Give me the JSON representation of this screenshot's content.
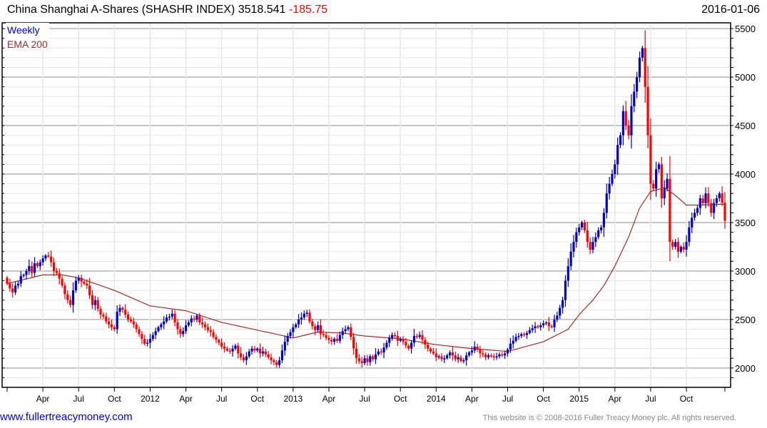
{
  "header": {
    "name": "China Shanghai A-Shares (SHASHR INDEX)",
    "last": "3518.541",
    "change": "-185.75",
    "date": "2016-01-06"
  },
  "legend": {
    "series": "Weekly",
    "ema": "EMA 200"
  },
  "footer": {
    "site": "www.fullertreacymoney.com",
    "copyright": "This website is © 2008-2016 Fuller Treacy Money plc. All rights reserved."
  },
  "colors": {
    "up": "#0000cc",
    "down": "#ff0000",
    "ema": "#a52a2a",
    "grid_minor": "#e6e6e6",
    "grid_major": "#b4b4b4"
  },
  "chart_data": {
    "type": "candlestick",
    "title": "China Shanghai A-Shares (SHASHR INDEX)",
    "frequency": "Weekly",
    "x_start": "2011-01",
    "x_end": "2016-01",
    "ylim": [
      1800,
      5560
    ],
    "yticks": [
      2000,
      2500,
      3000,
      3500,
      4000,
      4500,
      5000,
      5500
    ],
    "xticks": [
      {
        "week": 13,
        "label": "Apr"
      },
      {
        "week": 26,
        "label": "Jul"
      },
      {
        "week": 39,
        "label": "Oct"
      },
      {
        "week": 52,
        "label": "2012"
      },
      {
        "week": 65,
        "label": "Apr"
      },
      {
        "week": 78,
        "label": "Jul"
      },
      {
        "week": 91,
        "label": "Oct"
      },
      {
        "week": 104,
        "label": "2013"
      },
      {
        "week": 117,
        "label": "Apr"
      },
      {
        "week": 130,
        "label": "Jul"
      },
      {
        "week": 143,
        "label": "Oct"
      },
      {
        "week": 156,
        "label": "2014"
      },
      {
        "week": 169,
        "label": "Apr"
      },
      {
        "week": 182,
        "label": "Jul"
      },
      {
        "week": 195,
        "label": "Oct"
      },
      {
        "week": 208,
        "label": "2015"
      },
      {
        "week": 221,
        "label": "Apr"
      },
      {
        "week": 234,
        "label": "Jul"
      },
      {
        "week": 247,
        "label": "Oct"
      }
    ],
    "first_open": 2930,
    "weekly_close": [
      2870,
      2820,
      2780,
      2850,
      2870,
      2950,
      2960,
      3000,
      3050,
      2980,
      3080,
      3050,
      3090,
      3130,
      3160,
      3150,
      3090,
      3000,
      2980,
      2920,
      2850,
      2760,
      2700,
      2650,
      2800,
      2900,
      2930,
      2890,
      2870,
      2850,
      2750,
      2650,
      2700,
      2610,
      2550,
      2530,
      2480,
      2450,
      2420,
      2400,
      2580,
      2620,
      2600,
      2550,
      2500,
      2480,
      2450,
      2400,
      2350,
      2300,
      2250,
      2260,
      2300,
      2340,
      2380,
      2420,
      2450,
      2480,
      2520,
      2530,
      2560,
      2470,
      2400,
      2350,
      2380,
      2440,
      2470,
      2510,
      2500,
      2540,
      2470,
      2450,
      2420,
      2390,
      2370,
      2320,
      2290,
      2260,
      2220,
      2200,
      2180,
      2170,
      2200,
      2230,
      2150,
      2110,
      2080,
      2120,
      2170,
      2200,
      2180,
      2200,
      2150,
      2170,
      2140,
      2110,
      2080,
      2060,
      2030,
      2080,
      2180,
      2270,
      2330,
      2370,
      2420,
      2450,
      2500,
      2520,
      2560,
      2570,
      2480,
      2430,
      2390,
      2440,
      2350,
      2340,
      2310,
      2290,
      2270,
      2300,
      2280,
      2340,
      2380,
      2400,
      2420,
      2320,
      2200,
      2100,
      2070,
      2050,
      2100,
      2060,
      2120,
      2090,
      2140,
      2170,
      2160,
      2210,
      2260,
      2310,
      2340,
      2330,
      2280,
      2300,
      2270,
      2230,
      2200,
      2260,
      2330,
      2320,
      2340,
      2290,
      2240,
      2200,
      2170,
      2150,
      2110,
      2120,
      2090,
      2100,
      2130,
      2160,
      2130,
      2090,
      2110,
      2070,
      2080,
      2130,
      2160,
      2180,
      2220,
      2190,
      2150,
      2140,
      2110,
      2130,
      2120,
      2110,
      2120,
      2140,
      2130,
      2150,
      2190,
      2250,
      2280,
      2320,
      2330,
      2350,
      2340,
      2360,
      2390,
      2410,
      2430,
      2420,
      2440,
      2460,
      2470,
      2430,
      2420,
      2500,
      2540,
      2620,
      2700,
      2900,
      3050,
      3200,
      3300,
      3400,
      3450,
      3500,
      3420,
      3300,
      3220,
      3300,
      3350,
      3420,
      3450,
      3600,
      3800,
      3900,
      4000,
      4100,
      4300,
      4400,
      4650,
      4500,
      4400,
      4700,
      4850,
      5000,
      5200,
      5300,
      4900,
      4400,
      3900,
      3850,
      4050,
      4100,
      3750,
      3850,
      3950,
      3300,
      3250,
      3300,
      3200,
      3250,
      3220,
      3300,
      3450,
      3550,
      3600,
      3650,
      3750,
      3700,
      3800,
      3700,
      3600,
      3700,
      3750,
      3800,
      3704,
      3518.541
    ],
    "ema_200": [
      [
        0,
        2870
      ],
      [
        13,
        2960
      ],
      [
        20,
        2960
      ],
      [
        26,
        2930
      ],
      [
        39,
        2800
      ],
      [
        52,
        2640
      ],
      [
        65,
        2590
      ],
      [
        78,
        2470
      ],
      [
        91,
        2390
      ],
      [
        104,
        2310
      ],
      [
        113,
        2370
      ],
      [
        122,
        2360
      ],
      [
        130,
        2330
      ],
      [
        143,
        2300
      ],
      [
        156,
        2240
      ],
      [
        169,
        2200
      ],
      [
        182,
        2170
      ],
      [
        195,
        2270
      ],
      [
        204,
        2400
      ],
      [
        208,
        2550
      ],
      [
        213,
        2700
      ],
      [
        217,
        2850
      ],
      [
        221,
        3050
      ],
      [
        226,
        3350
      ],
      [
        230,
        3650
      ],
      [
        234,
        3820
      ],
      [
        239,
        3860
      ],
      [
        243,
        3780
      ],
      [
        247,
        3680
      ],
      [
        252,
        3680
      ],
      [
        261,
        3690
      ]
    ]
  }
}
